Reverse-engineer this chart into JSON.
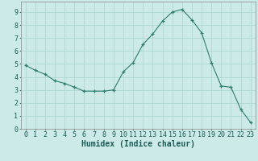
{
  "x": [
    0,
    1,
    2,
    3,
    4,
    5,
    6,
    7,
    8,
    9,
    10,
    11,
    12,
    13,
    14,
    15,
    16,
    17,
    18,
    19,
    20,
    21,
    22,
    23
  ],
  "y": [
    4.9,
    4.5,
    4.2,
    3.7,
    3.5,
    3.2,
    2.9,
    2.9,
    2.9,
    3.0,
    4.4,
    5.1,
    6.5,
    7.3,
    8.3,
    9.0,
    9.2,
    8.4,
    7.4,
    5.1,
    3.3,
    3.2,
    1.5,
    0.5
  ],
  "line_color": "#2e7d6e",
  "marker": "+",
  "bg_color": "#cceae8",
  "grid_color": "#aad4d0",
  "xlabel": "Humidex (Indice chaleur)",
  "xlim": [
    -0.5,
    23.5
  ],
  "ylim": [
    0,
    9.8
  ],
  "yticks": [
    0,
    1,
    2,
    3,
    4,
    5,
    6,
    7,
    8,
    9
  ],
  "xticks": [
    0,
    1,
    2,
    3,
    4,
    5,
    6,
    7,
    8,
    9,
    10,
    11,
    12,
    13,
    14,
    15,
    16,
    17,
    18,
    19,
    20,
    21,
    22,
    23
  ],
  "xlabel_fontsize": 7,
  "tick_fontsize": 6
}
